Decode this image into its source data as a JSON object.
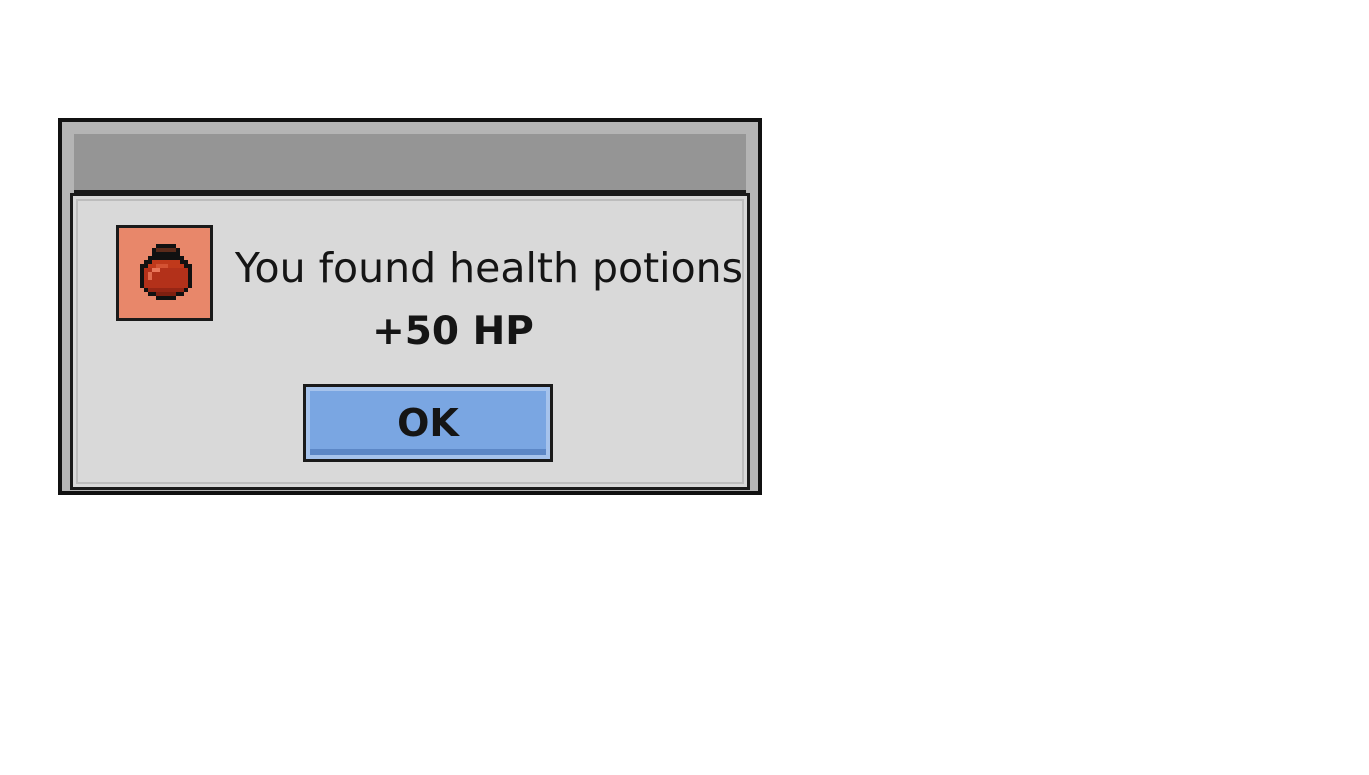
{
  "dialog": {
    "message": "You found health potions",
    "reward": "+50 HP",
    "ok_label": "OK",
    "item_icon": "health-potion-icon"
  },
  "colors": {
    "dialog_frame": "#b4b4b4",
    "titlebar": "#959595",
    "panel": "#d9d9d9",
    "item_slot": "#e8876a",
    "potion": "#c0391b",
    "ok_button": "#7aa6e2",
    "border": "#111111"
  }
}
